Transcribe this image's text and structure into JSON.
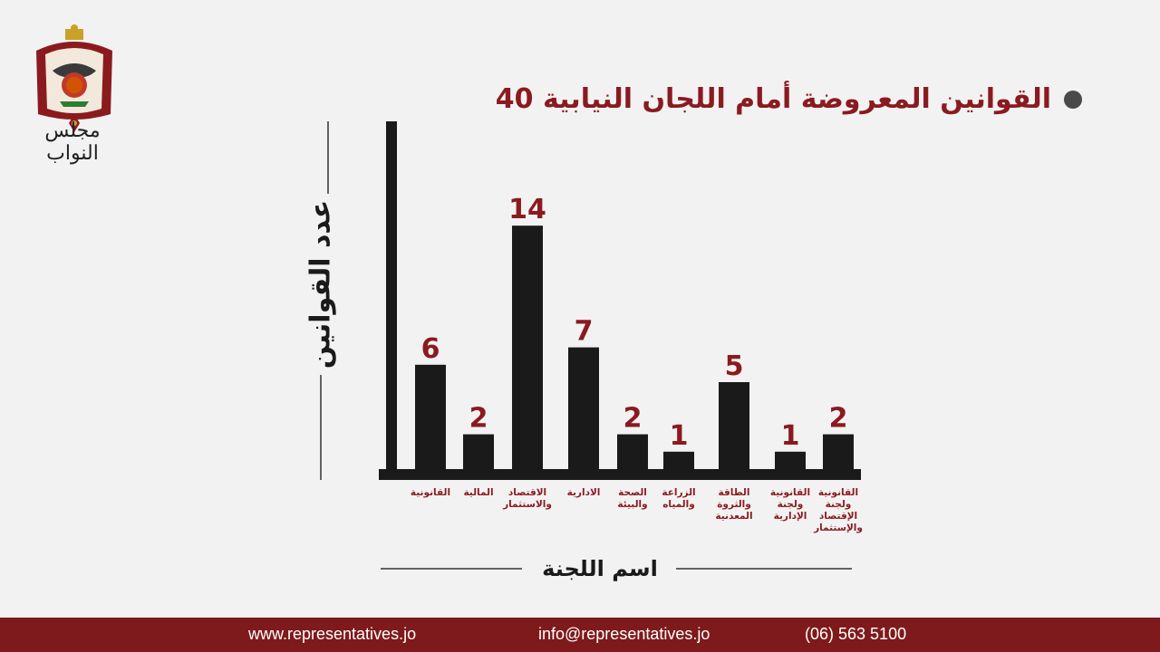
{
  "header": {
    "logo_caption": "مجلس النواب",
    "title": "القوانين المعروضة أمام اللجان النيابية 40"
  },
  "footer": {
    "website": "www.representatives.jo",
    "email": "info@representatives.jo",
    "phone": "(06) 563 5100"
  },
  "colors": {
    "accent": "#8b1a1f",
    "bars": "#1a1a1a",
    "footer_bg": "#7e1a1b",
    "background": "#f2f2f2"
  },
  "chart_data": {
    "type": "bar",
    "ylabel": "عدد القوانين",
    "xlabel": "اسم اللجنة",
    "categories": [
      "القانونية",
      "المالية",
      "الاقتصاد والاستثمار",
      "الادارية",
      "الصحة والبيئة",
      "الزراعة والمياه",
      "الطاقة والثروة المعدنية",
      "القانونية ولجنة الإدارية",
      "القانونية ولجنة الإقتصاد والإستثمار"
    ],
    "category_lines": [
      [
        "القانونية"
      ],
      [
        "المالية"
      ],
      [
        "الاقتصاد",
        "والاستثمار"
      ],
      [
        "الادارية"
      ],
      [
        "الصحة",
        "والبيئة"
      ],
      [
        "الزراعة",
        "والمياه"
      ],
      [
        "الطاقة",
        "والثروة",
        "المعدنية"
      ],
      [
        "القانونية",
        "ولجنة",
        "الإدارية"
      ],
      [
        "القانونية",
        "ولجنة",
        "الإقتصاد",
        "والإستثمار"
      ]
    ],
    "values": [
      6,
      2,
      14,
      7,
      2,
      1,
      5,
      1,
      2
    ],
    "data_labels": [
      "6",
      "2",
      "14",
      "7",
      "2",
      "1",
      "5",
      "1",
      "2"
    ],
    "ylim": [
      0,
      20
    ],
    "grid": false,
    "legend": "none"
  }
}
